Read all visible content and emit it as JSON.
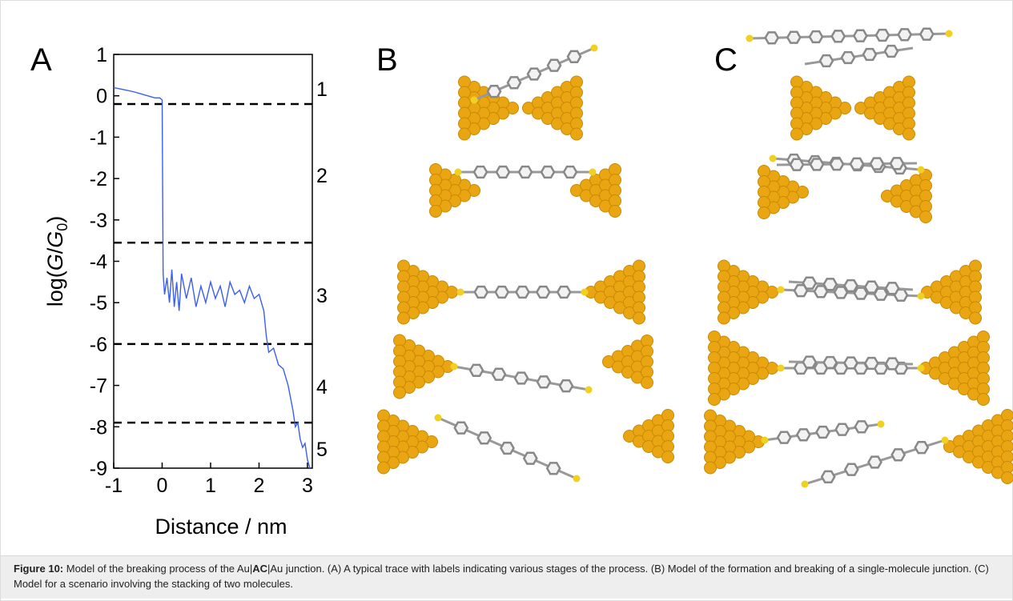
{
  "chart_data": {
    "type": "line",
    "ylabel_parts": [
      "log(",
      "G",
      "/",
      "G",
      "0",
      ")"
    ],
    "xlabel": "Distance / nm",
    "xlim": [
      -1,
      3.1
    ],
    "ylim": [
      -9,
      1
    ],
    "xticks": [
      -1,
      0,
      1,
      2,
      3
    ],
    "yticks": [
      -9,
      -8,
      -7,
      -6,
      -5,
      -4,
      -3,
      -2,
      -1,
      0,
      1
    ],
    "hlines": [
      -0.2,
      -3.55,
      -6,
      -7.9
    ],
    "stage_labels": [
      "1",
      "2",
      "3",
      "4",
      "5"
    ],
    "x": [
      -1,
      -0.8,
      -0.6,
      -0.45,
      -0.3,
      -0.15,
      -0.05,
      0,
      0.02,
      0.05,
      0.1,
      0.15,
      0.2,
      0.25,
      0.3,
      0.35,
      0.4,
      0.5,
      0.6,
      0.7,
      0.8,
      0.9,
      1.0,
      1.1,
      1.2,
      1.3,
      1.4,
      1.5,
      1.6,
      1.7,
      1.8,
      1.9,
      2.0,
      2.05,
      2.1,
      2.15,
      2.2,
      2.3,
      2.4,
      2.5,
      2.6,
      2.7,
      2.75,
      2.8,
      2.85,
      2.9,
      2.95,
      3.0,
      3.05
    ],
    "series": [
      {
        "color": "#3b5ef0",
        "values": [
          0.2,
          0.15,
          0.1,
          0.05,
          0.0,
          -0.05,
          -0.05,
          -0.1,
          -4.3,
          -4.8,
          -4.4,
          -5.0,
          -4.2,
          -5.1,
          -4.5,
          -5.2,
          -4.3,
          -4.9,
          -4.4,
          -5.1,
          -4.6,
          -5.0,
          -4.5,
          -4.9,
          -4.6,
          -5.1,
          -4.5,
          -4.8,
          -4.7,
          -5.0,
          -4.6,
          -4.9,
          -4.8,
          -5.0,
          -5.2,
          -5.8,
          -6.2,
          -6.1,
          -6.5,
          -6.6,
          -7.0,
          -7.6,
          -8.0,
          -7.9,
          -8.3,
          -8.5,
          -8.4,
          -8.8,
          -9.0
        ]
      }
    ]
  },
  "panels": [
    "A",
    "B",
    "C"
  ],
  "caption": {
    "label": "Figure 10:",
    "segments": [
      "Model of the breaking process of the Au|",
      "AC",
      "|Au junction. (A) A typical trace with labels indicating various stages of the process. (B) Model of the formation and breaking of a single-molecule junction. (C) Model for a scenario involving the stacking of two molecules."
    ]
  }
}
